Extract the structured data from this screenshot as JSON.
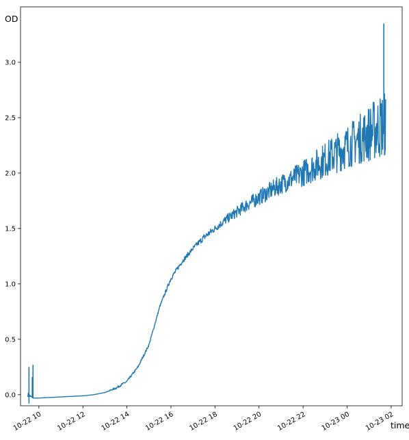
{
  "chart_data": {
    "type": "line",
    "title": "",
    "xlabel": "time",
    "ylabel": "OD",
    "x_type": "datetime",
    "xlim": [
      "2021-10-22T09:10",
      "2021-10-23T02:30"
    ],
    "ylim": [
      -0.1,
      3.5
    ],
    "grid": false,
    "legend": "none",
    "line_color": "#1f77b4",
    "x_ticks": [
      "10-22 10",
      "10-22 12",
      "10-22 14",
      "10-22 16",
      "10-22 18",
      "10-22 20",
      "10-22 22",
      "10-23 00",
      "10-23 02"
    ],
    "y_ticks": [
      "0.0",
      "0.5",
      "1.0",
      "1.5",
      "2.0",
      "2.5",
      "3.0"
    ],
    "series": [
      {
        "x": [
          "2021-10-22T09:30",
          "2021-10-22T09:45",
          "2021-10-22T10:00",
          "2021-10-22T10:30",
          "2021-10-22T11:00",
          "2021-10-22T11:30",
          "2021-10-22T12:00",
          "2021-10-22T12:30",
          "2021-10-22T13:00",
          "2021-10-22T13:30",
          "2021-10-22T14:00",
          "2021-10-22T14:30",
          "2021-10-22T15:00",
          "2021-10-22T15:30",
          "2021-10-22T16:00",
          "2021-10-22T16:30",
          "2021-10-22T17:00",
          "2021-10-22T17:30",
          "2021-10-22T18:00",
          "2021-10-22T18:30",
          "2021-10-22T19:00",
          "2021-10-22T19:30",
          "2021-10-22T20:00",
          "2021-10-22T20:30",
          "2021-10-22T21:00",
          "2021-10-22T21:30",
          "2021-10-22T22:00",
          "2021-10-22T22:30",
          "2021-10-22T23:00",
          "2021-10-22T23:30",
          "2021-10-23T00:00",
          "2021-10-23T00:30",
          "2021-10-23T01:00",
          "2021-10-23T01:30",
          "2021-10-23T01:45"
        ],
        "values": [
          0.0,
          -0.03,
          -0.03,
          -0.025,
          -0.02,
          -0.015,
          -0.01,
          0.0,
          0.02,
          0.06,
          0.12,
          0.25,
          0.45,
          0.8,
          1.05,
          1.2,
          1.32,
          1.42,
          1.5,
          1.58,
          1.65,
          1.72,
          1.78,
          1.84,
          1.9,
          1.95,
          2.0,
          2.06,
          2.12,
          2.18,
          2.24,
          2.3,
          2.36,
          2.42,
          2.45
        ],
        "noise": [
          0.02,
          0,
          0,
          0,
          0,
          0,
          0,
          0,
          0,
          0.01,
          0.01,
          0.01,
          0.01,
          0.01,
          0.02,
          0.02,
          0.02,
          0.03,
          0.03,
          0.04,
          0.05,
          0.06,
          0.07,
          0.08,
          0.09,
          0.1,
          0.12,
          0.14,
          0.16,
          0.18,
          0.2,
          0.22,
          0.26,
          0.3,
          0.3
        ]
      }
    ],
    "spikes": [
      {
        "x": "2021-10-22T09:33",
        "y": 0.25
      },
      {
        "x": "2021-10-22T09:33",
        "y": -0.08
      },
      {
        "x": "2021-10-22T09:44",
        "y": 0.27
      },
      {
        "x": "2021-10-22T09:42",
        "y": 0.16
      },
      {
        "x": "2021-10-23T01:40",
        "y": 3.35
      },
      {
        "x": "2021-10-23T01:42",
        "y": 2.16
      }
    ]
  }
}
